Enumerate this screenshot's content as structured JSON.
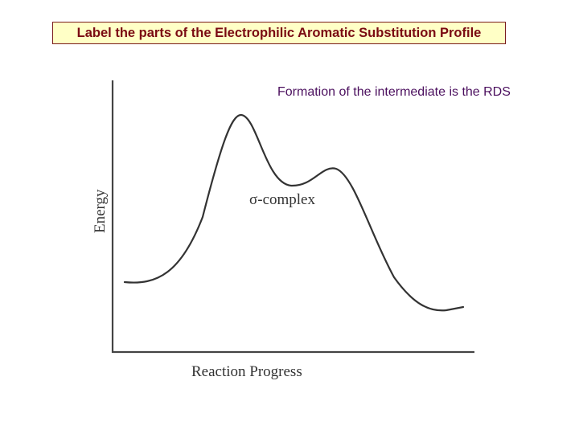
{
  "title": "Label the parts of the Electrophilic Aromatic Substitution Profile",
  "note": "Formation of the intermediate is the RDS",
  "diagram": {
    "ylabel": "Energy",
    "xlabel": "Reaction Progress",
    "intermediate_label": "σ-complex"
  },
  "colors": {
    "title_text": "#7a0a12",
    "title_bg": "#ffffc6",
    "note_text": "#4b0f5e",
    "curve": "#333333"
  }
}
